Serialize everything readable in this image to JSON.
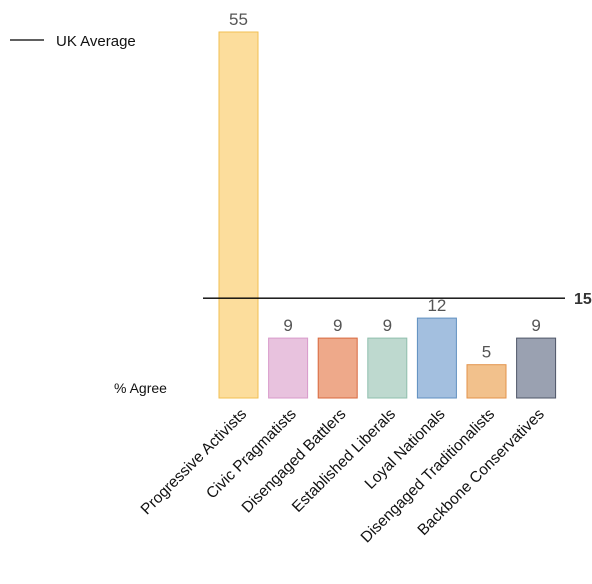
{
  "chart_data": {
    "type": "bar",
    "categories": [
      "Progressive Activists",
      "Civic Pragmatists",
      "Disengaged Battlers",
      "Established Liberals",
      "Loyal Nationals",
      "Disengaged Traditionalists",
      "Backbone Conservatives"
    ],
    "values": [
      55,
      9,
      9,
      9,
      12,
      5,
      9
    ],
    "data_labels": [
      "55",
      "9",
      "9",
      "9",
      "12",
      "5",
      "9"
    ],
    "colors": [
      {
        "fill": "#fcdd9c",
        "stroke": "#f2bf52"
      },
      {
        "fill": "#e8c2de",
        "stroke": "#d89acb"
      },
      {
        "fill": "#eea98a",
        "stroke": "#d8683e"
      },
      {
        "fill": "#bed9cf",
        "stroke": "#8fbfad"
      },
      {
        "fill": "#a3bfdf",
        "stroke": "#5f8fc0"
      },
      {
        "fill": "#f2c18c",
        "stroke": "#e3924a"
      },
      {
        "fill": "#9aa1b1",
        "stroke": "#4e5668"
      }
    ],
    "reference_line": {
      "label": "15",
      "value": 15,
      "color": "#000000"
    },
    "legend": {
      "label": "UK Average",
      "position": "top-left"
    },
    "ylabel": "% Agree",
    "ylim": [
      0,
      55
    ],
    "grid": false
  }
}
